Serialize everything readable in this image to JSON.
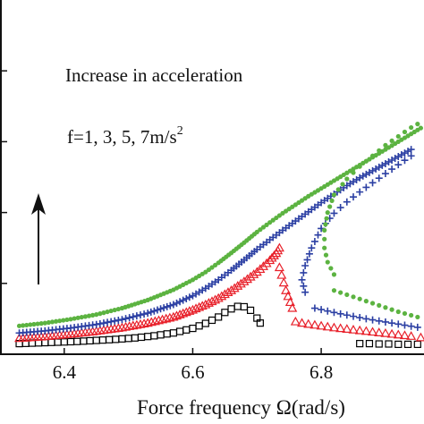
{
  "chart_data": {
    "type": "scatter",
    "xlabel": "Force frequency Ω(rad/s)",
    "ylabel": "",
    "xlim": [
      6.3,
      6.96
    ],
    "ylim": [
      0,
      1.0
    ],
    "x_ticks": [
      "6.4",
      "6.6",
      "6.8"
    ],
    "x_tick_values": [
      6.4,
      6.6,
      6.8
    ],
    "y_tick_values": [
      0.2,
      0.4,
      0.6,
      0.8
    ],
    "annotation_line1": "Increase in acceleration",
    "annotation_line2": "f=1, 3, 5, 7m/s",
    "annotation_sup": "2",
    "arrow": "up",
    "grid": false,
    "series": [
      {
        "color": "#000000",
        "marker": "square",
        "upper": {
          "x": [
            6.33,
            6.36,
            6.39,
            6.42,
            6.45,
            6.48,
            6.51,
            6.54,
            6.57,
            6.6,
            6.62,
            6.64,
            6.65,
            6.66,
            6.67,
            6.68,
            6.69,
            6.7,
            6.705
          ],
          "y": [
            0.03,
            0.032,
            0.034,
            0.036,
            0.039,
            0.042,
            0.046,
            0.052,
            0.06,
            0.073,
            0.087,
            0.105,
            0.118,
            0.128,
            0.135,
            0.134,
            0.124,
            0.102,
            0.088
          ]
        },
        "lower": {
          "x": [
            6.86,
            6.875,
            6.89,
            6.905,
            6.92,
            6.935,
            6.95
          ],
          "y": [
            0.03,
            0.03,
            0.029,
            0.029,
            0.028,
            0.028,
            0.028
          ]
        }
      },
      {
        "color": "#e8202a",
        "marker": "triangle",
        "upper": {
          "x": [
            6.33,
            6.37,
            6.41,
            6.45,
            6.49,
            6.53,
            6.57,
            6.6,
            6.62,
            6.64,
            6.66,
            6.68,
            6.7,
            6.71,
            6.72,
            6.73,
            6.735
          ],
          "y": [
            0.045,
            0.05,
            0.057,
            0.065,
            0.075,
            0.088,
            0.105,
            0.125,
            0.14,
            0.158,
            0.18,
            0.205,
            0.232,
            0.248,
            0.265,
            0.285,
            0.3
          ]
        },
        "unstable": {
          "x": [
            6.735,
            6.745,
            6.755
          ],
          "y": [
            0.245,
            0.18,
            0.13
          ]
        },
        "lower": {
          "x": [
            6.76,
            6.77,
            6.78,
            6.8,
            6.82,
            6.84,
            6.86,
            6.88,
            6.9,
            6.92,
            6.94,
            6.955
          ],
          "y": [
            0.092,
            0.088,
            0.085,
            0.08,
            0.075,
            0.071,
            0.067,
            0.063,
            0.059,
            0.055,
            0.051,
            0.047
          ]
        }
      },
      {
        "color": "#2b3fa3",
        "marker": "circle+cross",
        "upper": {
          "x": [
            6.33,
            6.37,
            6.41,
            6.45,
            6.49,
            6.53,
            6.57,
            6.6,
            6.62,
            6.64,
            6.66,
            6.68,
            6.7,
            6.72,
            6.74,
            6.76,
            6.78,
            6.8,
            6.82,
            6.84,
            6.86,
            6.88,
            6.9,
            6.92,
            6.94
          ],
          "y": [
            0.06,
            0.066,
            0.074,
            0.084,
            0.098,
            0.116,
            0.14,
            0.165,
            0.186,
            0.21,
            0.237,
            0.266,
            0.296,
            0.323,
            0.35,
            0.376,
            0.402,
            0.428,
            0.452,
            0.476,
            0.498,
            0.518,
            0.538,
            0.558,
            0.578
          ]
        },
        "unstable": {
          "x": [
            6.94,
            6.92,
            6.9,
            6.88,
            6.86,
            6.84,
            6.82,
            6.8,
            6.785,
            6.775,
            6.77,
            6.775
          ],
          "y": [
            0.56,
            0.535,
            0.51,
            0.484,
            0.458,
            0.43,
            0.398,
            0.355,
            0.3,
            0.25,
            0.21,
            0.175
          ]
        },
        "lower": {
          "x": [
            6.79,
            6.81,
            6.83,
            6.85,
            6.87,
            6.89,
            6.91,
            6.93,
            6.95
          ],
          "y": [
            0.13,
            0.122,
            0.114,
            0.107,
            0.1,
            0.094,
            0.088,
            0.082,
            0.076
          ]
        }
      },
      {
        "color": "#5cb341",
        "marker": "circle",
        "upper": {
          "x": [
            6.33,
            6.37,
            6.41,
            6.45,
            6.49,
            6.53,
            6.57,
            6.6,
            6.62,
            6.64,
            6.66,
            6.68,
            6.7,
            6.72,
            6.74,
            6.76,
            6.78,
            6.8,
            6.82,
            6.84,
            6.86,
            6.88,
            6.9,
            6.92,
            6.94,
            6.96
          ],
          "y": [
            0.08,
            0.088,
            0.099,
            0.112,
            0.13,
            0.153,
            0.182,
            0.21,
            0.232,
            0.258,
            0.286,
            0.315,
            0.345,
            0.372,
            0.398,
            0.422,
            0.446,
            0.468,
            0.49,
            0.512,
            0.534,
            0.556,
            0.578,
            0.6,
            0.622,
            0.644
          ]
        },
        "unstable": {
          "x": [
            6.96,
            6.94,
            6.92,
            6.9,
            6.88,
            6.86,
            6.84,
            6.82,
            6.81,
            6.805,
            6.805,
            6.81,
            6.82
          ],
          "y": [
            0.66,
            0.64,
            0.615,
            0.59,
            0.56,
            0.53,
            0.495,
            0.45,
            0.4,
            0.35,
            0.3,
            0.26,
            0.225
          ]
        },
        "lower": {
          "x": [
            6.82,
            6.84,
            6.86,
            6.88,
            6.9,
            6.92,
            6.94,
            6.96
          ],
          "y": [
            0.18,
            0.168,
            0.156,
            0.144,
            0.132,
            0.12,
            0.11,
            0.1
          ]
        }
      }
    ]
  }
}
